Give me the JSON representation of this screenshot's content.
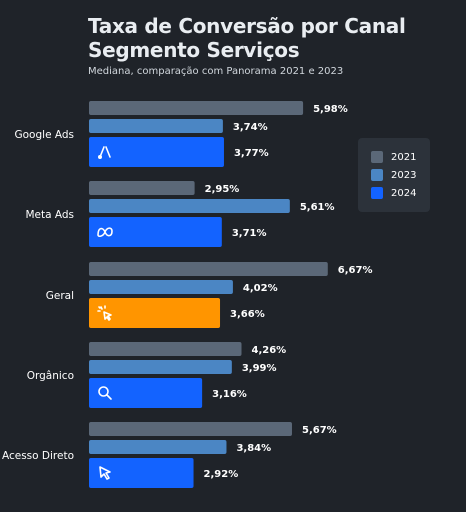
{
  "header": {
    "title_line1": "Taxa de Conversão por Canal",
    "title_line2": "Segmento Serviços",
    "subtitle": "Mediana, comparação com Panorama 2021 e 2023"
  },
  "colors": {
    "background": "#1f2329",
    "2021": "#5b6878",
    "2023": "#4b86c4",
    "2024": "#1363ff",
    "highlight": "#ff9500"
  },
  "chart_data": {
    "type": "bar",
    "orientation": "horizontal",
    "title": "Taxa de Conversão por Canal",
    "subtitle": "Segmento Serviços",
    "categories": [
      "Google Ads",
      "Meta Ads",
      "Geral",
      "Orgânico",
      "Acesso Direto"
    ],
    "category_icons": [
      "google-ads-icon",
      "meta-icon",
      "cursor-click-icon",
      "search-icon",
      "cursor-icon"
    ],
    "highlight_category": "Geral",
    "series": [
      {
        "name": "2021",
        "values": [
          5.98,
          2.95,
          6.67,
          4.26,
          5.67
        ],
        "labels": [
          "5,98%",
          "2,95%",
          "6,67%",
          "4,26%",
          "5,67%"
        ]
      },
      {
        "name": "2023",
        "values": [
          3.74,
          5.61,
          4.02,
          3.99,
          3.84
        ],
        "labels": [
          "3,74%",
          "5,61%",
          "4,02%",
          "3,99%",
          "3,84%"
        ]
      },
      {
        "name": "2024",
        "values": [
          3.77,
          3.71,
          3.66,
          3.16,
          2.92
        ],
        "labels": [
          "3,77%",
          "3,71%",
          "3,66%",
          "3,16%",
          "2,92%"
        ]
      }
    ],
    "xlim": [
      0,
      7
    ],
    "grid": false,
    "legend_position": "right"
  },
  "legend": {
    "items": [
      "2021",
      "2023",
      "2024"
    ]
  }
}
